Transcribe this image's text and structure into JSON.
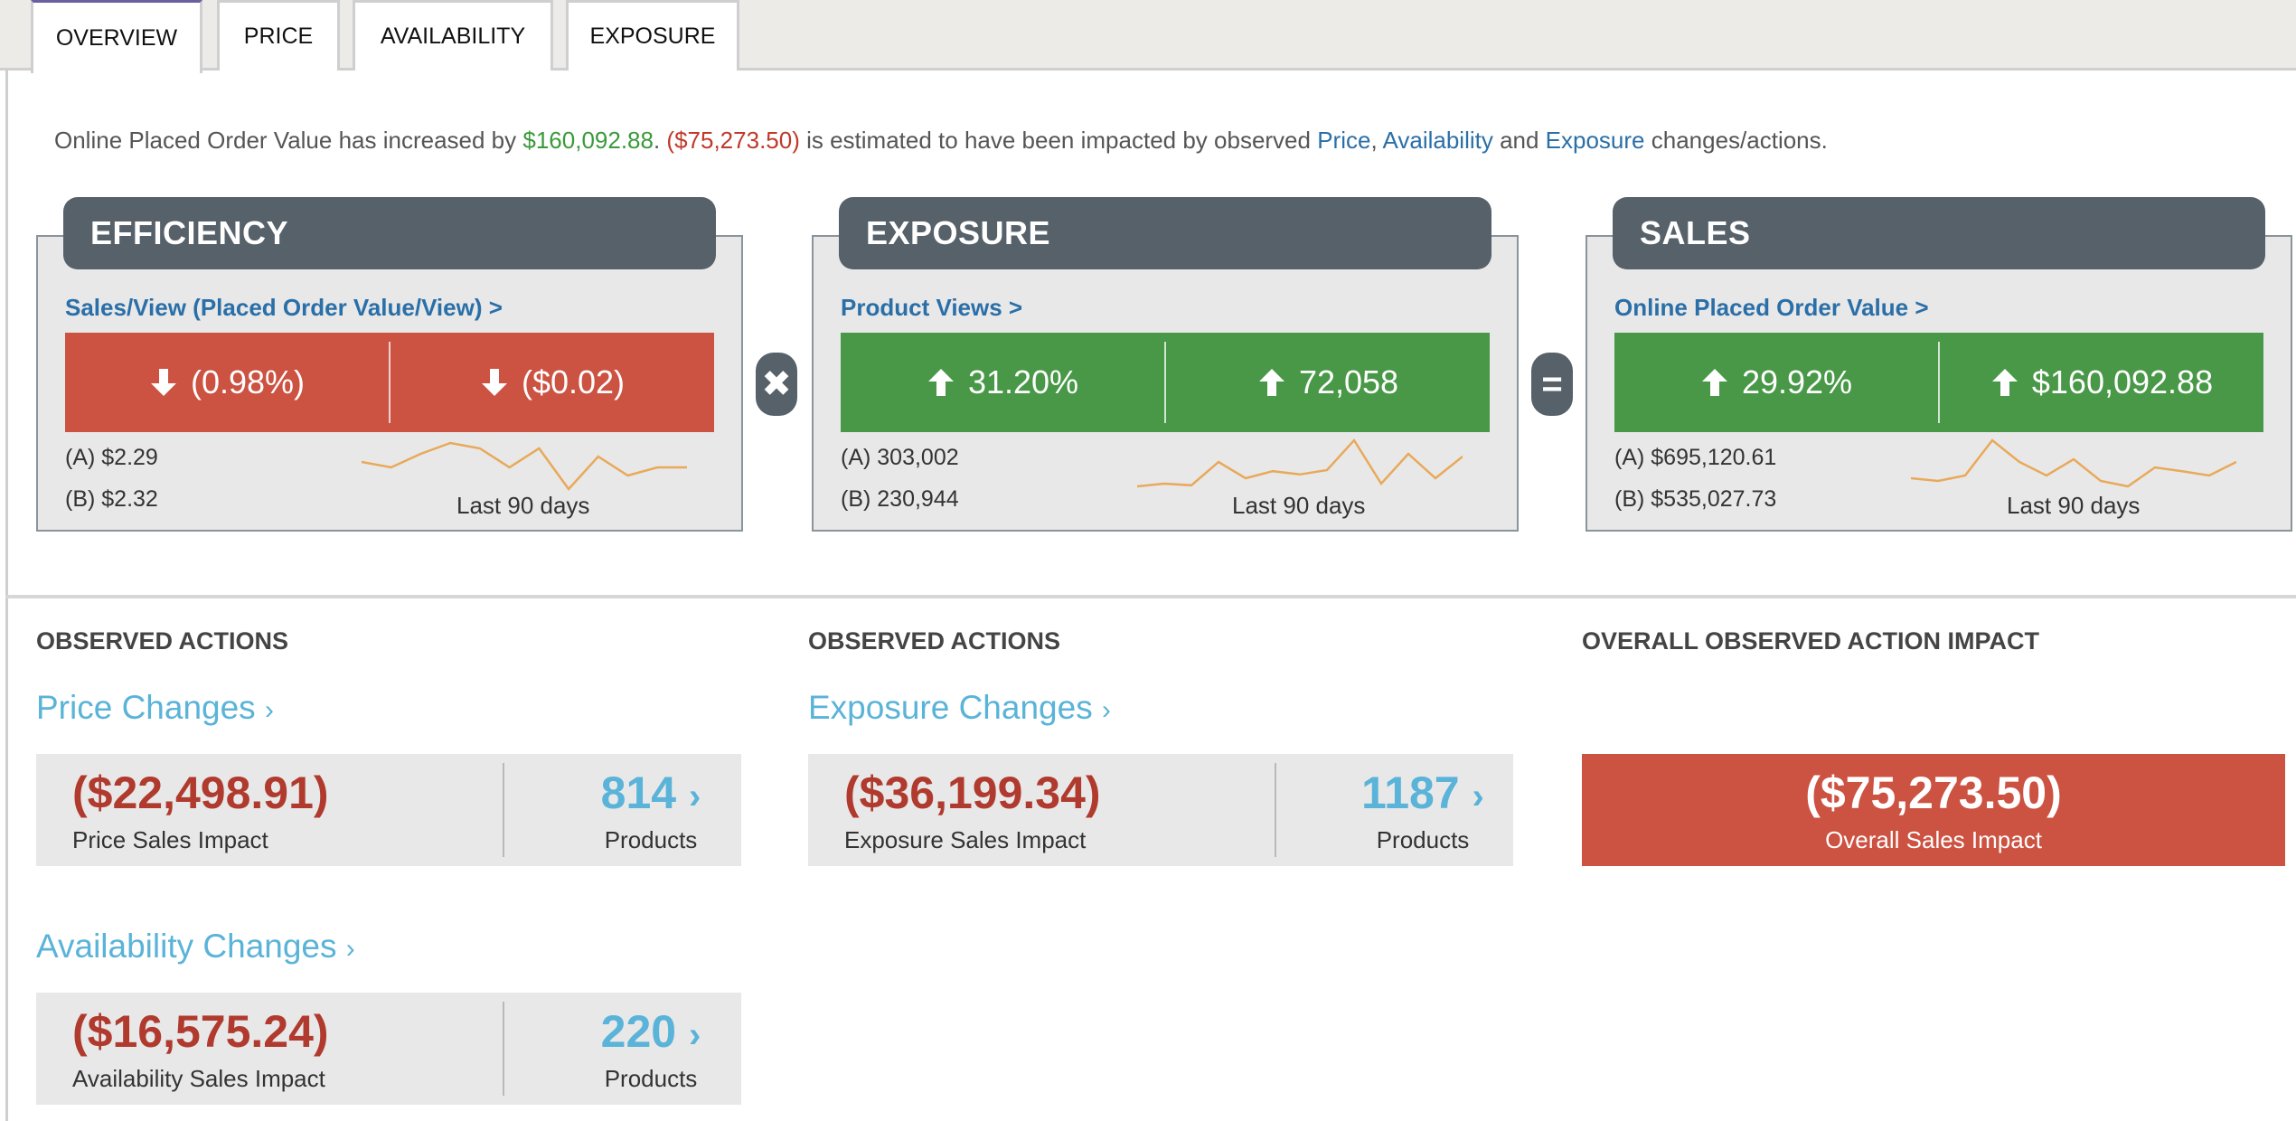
{
  "tabs": [
    "OVERVIEW",
    "PRICE",
    "AVAILABILITY",
    "EXPOSURE"
  ],
  "summary": {
    "p1": "Online Placed Order Value has increased by ",
    "increase": "$160,092.88",
    "p2": ". ",
    "impact": "($75,273.50)",
    "p3": " is estimated to have been impacted by observed ",
    "price": "Price",
    "sep1": ", ",
    "availability": "Availability",
    "p4": " and ",
    "exposure": "Exposure",
    "p5": " changes/actions."
  },
  "cards": {
    "efficiency": {
      "title": "EFFICIENCY",
      "link": "Sales/View (Placed Order Value/View) >",
      "pct": "(0.98%)",
      "abs": "($0.02)",
      "direction": "down",
      "a": "(A) $2.29",
      "b": "(B) $2.32",
      "period": "Last 90 days",
      "spark": [
        0.45,
        0.55,
        0.3,
        0.1,
        0.2,
        0.55,
        0.2,
        0.95,
        0.35,
        0.7,
        0.55,
        0.55
      ]
    },
    "exposure": {
      "title": "EXPOSURE",
      "link": "Product Views >",
      "pct": "31.20%",
      "abs": "72,058",
      "direction": "up",
      "a": "(A) 303,002",
      "b": "(B) 230,944",
      "period": "Last 90 days",
      "spark": [
        0.9,
        0.85,
        0.88,
        0.45,
        0.75,
        0.62,
        0.68,
        0.6,
        0.05,
        0.85,
        0.3,
        0.75,
        0.35
      ]
    },
    "sales": {
      "title": "SALES",
      "link": "Online Placed Order Value >",
      "pct": "29.92%",
      "abs": "$160,092.88",
      "direction": "up",
      "a": "(A) $695,120.61",
      "b": "(B) $535,027.73",
      "period": "Last 90 days",
      "spark": [
        0.75,
        0.8,
        0.7,
        0.05,
        0.45,
        0.7,
        0.4,
        0.8,
        0.9,
        0.55,
        0.62,
        0.7,
        0.45
      ]
    }
  },
  "operators": {
    "times": "✖",
    "equals": "="
  },
  "actions": {
    "col1_title": "OBSERVED ACTIONS",
    "col2_title": "OBSERVED ACTIONS",
    "col3_title": "OVERALL OBSERVED ACTION IMPACT",
    "price": {
      "label": "Price Changes",
      "impact": "($22,498.91)",
      "impact_label": "Price Sales Impact",
      "products": "814",
      "products_label": "Products"
    },
    "exposure": {
      "label": "Exposure Changes",
      "impact": "($36,199.34)",
      "impact_label": "Exposure Sales Impact",
      "products": "1187",
      "products_label": "Products"
    },
    "availability": {
      "label": "Availability Changes",
      "impact": "($16,575.24)",
      "impact_label": "Availability Sales Impact",
      "products": "220",
      "products_label": "Products"
    },
    "overall": {
      "value": "($75,273.50)",
      "label": "Overall Sales Impact"
    }
  },
  "colors": {
    "negative": "#cc5242",
    "positive": "#489847",
    "link": "#5ab3d8",
    "header": "#56616a",
    "spark": "#e8a95a"
  }
}
